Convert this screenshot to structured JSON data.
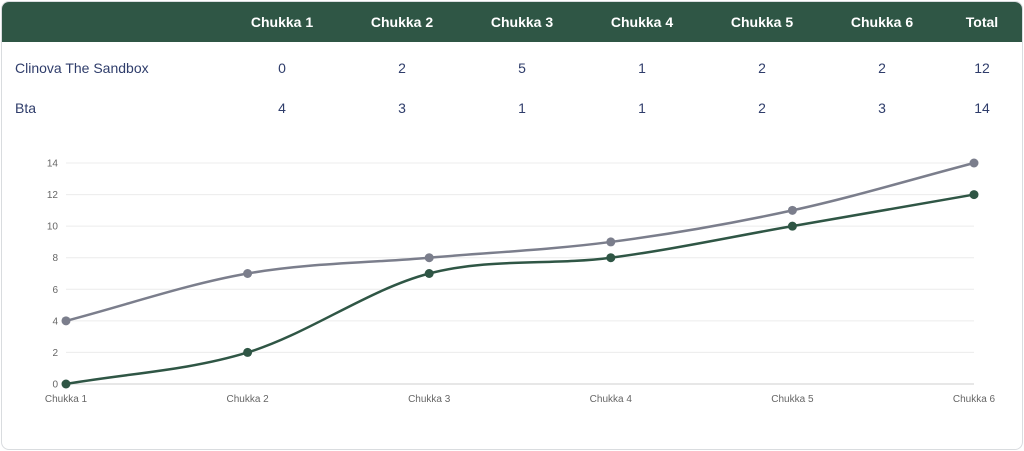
{
  "scoreboard": {
    "headers": [
      "",
      "Chukka 1",
      "Chukka 2",
      "Chukka 3",
      "Chukka 4",
      "Chukka 5",
      "Chukka 6",
      "Total"
    ],
    "rows": [
      {
        "team": "Clinova The Sandbox",
        "scores": [
          "0",
          "2",
          "5",
          "1",
          "2",
          "2"
        ],
        "total": "12"
      },
      {
        "team": "Bta",
        "scores": [
          "4",
          "3",
          "1",
          "1",
          "2",
          "3"
        ],
        "total": "14"
      }
    ]
  },
  "colors": {
    "header_bg": "#2f5645",
    "series_1": "#2f5645",
    "series_2": "#7b7e8c",
    "text": "#2f3d6b"
  },
  "chart_data": {
    "type": "line",
    "categories": [
      "Chukka 1",
      "Chukka 2",
      "Chukka 3",
      "Chukka 4",
      "Chukka 5",
      "Chukka 6"
    ],
    "series": [
      {
        "values": [
          0,
          2,
          7,
          8,
          10,
          12
        ],
        "color": "#2f5645"
      },
      {
        "values": [
          4,
          7,
          8,
          9,
          11,
          14
        ],
        "color": "#7b7e8c"
      }
    ],
    "yticks": [
      "0",
      "2",
      "4",
      "6",
      "8",
      "10",
      "12",
      "14"
    ],
    "ylim": [
      0,
      14
    ],
    "grid": true,
    "legend": "none"
  }
}
